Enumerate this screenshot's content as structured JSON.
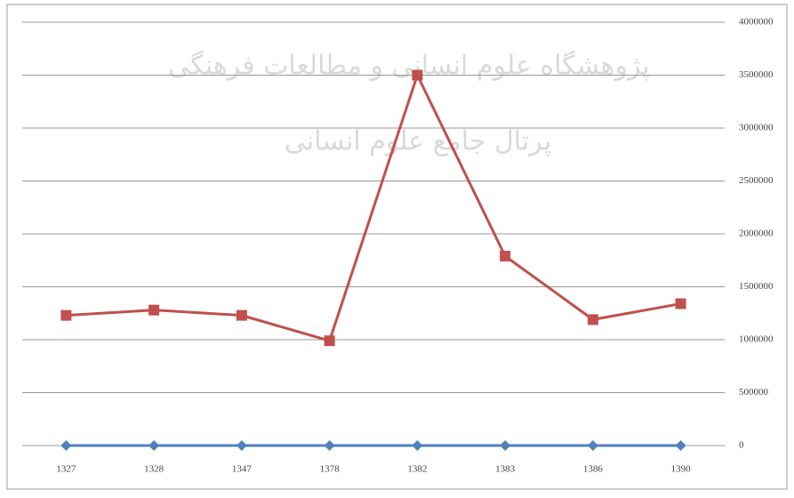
{
  "chart_data": {
    "type": "line",
    "categories": [
      "1327",
      "1328",
      "1347",
      "1378",
      "1382",
      "1383",
      "1386",
      "1390"
    ],
    "series": [
      {
        "color": "#4f81bd",
        "marker": "diamond",
        "values": [
          0,
          0,
          0,
          0,
          0,
          0,
          0,
          0
        ]
      },
      {
        "color": "#c0504d",
        "marker": "square",
        "values": [
          1230000,
          1280000,
          1230000,
          990000,
          3500000,
          1790000,
          1190000,
          1340000
        ]
      }
    ],
    "ylim": [
      0,
      4000000
    ],
    "yticks": [
      0,
      500000,
      1000000,
      1500000,
      2000000,
      2500000,
      3000000,
      3500000,
      4000000
    ],
    "grid": true,
    "y_axis_side": "right",
    "annotations": [
      "پژوهشگاه علوم انسانی و مطالعات فرهنگی",
      "پرتال جامع علوم انسانی"
    ]
  }
}
